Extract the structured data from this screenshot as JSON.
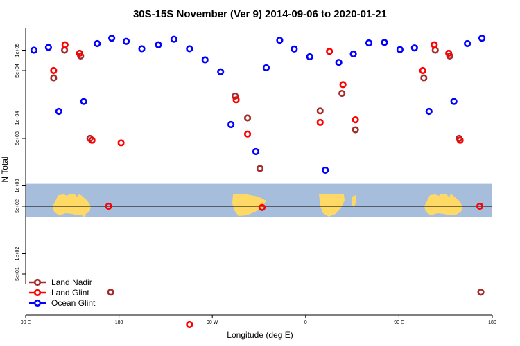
{
  "chart_data": {
    "type": "scatter",
    "title": "30S-15S November (Ver 9)   2014-09-06 to 2020-01-21",
    "xlabel": "Longitude (deg E)",
    "ylabel": "N Total",
    "xlim": [
      90,
      540
    ],
    "x_ticks": [
      {
        "value": 90,
        "label": "90 E"
      },
      {
        "value": 180,
        "label": "180"
      },
      {
        "value": 270,
        "label": "90 W"
      },
      {
        "value": 360,
        "label": "0"
      },
      {
        "value": 450,
        "label": "90 E"
      },
      {
        "value": 540,
        "label": "180"
      }
    ],
    "y_ticks": [
      {
        "value": 50,
        "label": "5e+01"
      },
      {
        "value": 100,
        "label": "1e+02"
      },
      {
        "value": 500,
        "label": "5e+02"
      },
      {
        "value": 1000,
        "label": "1e+03"
      },
      {
        "value": 5000,
        "label": "5e+03"
      },
      {
        "value": 10000,
        "label": "1e+04"
      },
      {
        "value": 50000,
        "label": "5e+04"
      },
      {
        "value": 100000,
        "label": "1e+05"
      }
    ],
    "reference_line": 500,
    "map_band": {
      "y_top": 1070,
      "y_bottom": 350,
      "land_color": "#ffd966",
      "ocean_color": "#a6bddb"
    },
    "legend": {
      "position": "bottom-left"
    },
    "series": [
      {
        "name": "Land Nadir",
        "color": "#a52a2a",
        "points": [
          {
            "x": 117.0,
            "y": 39000
          },
          {
            "x": 127.5,
            "y": 100000
          },
          {
            "x": 143.0,
            "y": 82000
          },
          {
            "x": 152.0,
            "y": 5000
          },
          {
            "x": 172.0,
            "y": 27
          },
          {
            "x": 292.0,
            "y": 21000
          },
          {
            "x": 304.0,
            "y": 10000
          },
          {
            "x": 316.0,
            "y": 1800
          },
          {
            "x": 374.0,
            "y": 12700
          },
          {
            "x": 395.0,
            "y": 23000
          },
          {
            "x": 408.0,
            "y": 6700
          },
          {
            "x": 474.0,
            "y": 39000
          },
          {
            "x": 485.0,
            "y": 100000
          },
          {
            "x": 499.0,
            "y": 82000
          },
          {
            "x": 508.0,
            "y": 5000
          },
          {
            "x": 529.0,
            "y": 27
          }
        ]
      },
      {
        "name": "Land Glint",
        "color": "#ff0000",
        "points": [
          {
            "x": 117.0,
            "y": 50000
          },
          {
            "x": 128.0,
            "y": 120000
          },
          {
            "x": 142.0,
            "y": 90000
          },
          {
            "x": 154.0,
            "y": 4700
          },
          {
            "x": 170.0,
            "y": 500
          },
          {
            "x": 182.0,
            "y": 4300
          },
          {
            "x": 248.0,
            "y": 9
          },
          {
            "x": 293.0,
            "y": 18500
          },
          {
            "x": 304.0,
            "y": 5800
          },
          {
            "x": 318.0,
            "y": 480
          },
          {
            "x": 374.0,
            "y": 8600
          },
          {
            "x": 383.0,
            "y": 96000
          },
          {
            "x": 396.0,
            "y": 31000
          },
          {
            "x": 408.0,
            "y": 9400
          },
          {
            "x": 473.0,
            "y": 50000
          },
          {
            "x": 484.0,
            "y": 120000
          },
          {
            "x": 498.0,
            "y": 90000
          },
          {
            "x": 509.0,
            "y": 4700
          },
          {
            "x": 528.0,
            "y": 500
          }
        ]
      },
      {
        "name": "Ocean Glint",
        "color": "#0000ff",
        "points": [
          {
            "x": 98.0,
            "y": 100000
          },
          {
            "x": 112.0,
            "y": 110000
          },
          {
            "x": 122.0,
            "y": 12500
          },
          {
            "x": 146.0,
            "y": 17500
          },
          {
            "x": 159.0,
            "y": 125000
          },
          {
            "x": 173.0,
            "y": 150000
          },
          {
            "x": 187.0,
            "y": 135000
          },
          {
            "x": 202.0,
            "y": 105000
          },
          {
            "x": 218.0,
            "y": 120000
          },
          {
            "x": 233.0,
            "y": 145000
          },
          {
            "x": 248.0,
            "y": 105000
          },
          {
            "x": 263.0,
            "y": 72000
          },
          {
            "x": 278.0,
            "y": 48000
          },
          {
            "x": 288.0,
            "y": 8000
          },
          {
            "x": 312.0,
            "y": 3200
          },
          {
            "x": 322.0,
            "y": 55000
          },
          {
            "x": 335.0,
            "y": 140000
          },
          {
            "x": 349.0,
            "y": 104000
          },
          {
            "x": 364.0,
            "y": 80000
          },
          {
            "x": 379.0,
            "y": 1700
          },
          {
            "x": 392.0,
            "y": 66000
          },
          {
            "x": 406.0,
            "y": 88000
          },
          {
            "x": 421.0,
            "y": 128000
          },
          {
            "x": 436.0,
            "y": 130000
          },
          {
            "x": 451.0,
            "y": 102000
          },
          {
            "x": 465.0,
            "y": 108000
          },
          {
            "x": 479.0,
            "y": 12500
          },
          {
            "x": 503.0,
            "y": 17500
          },
          {
            "x": 516.0,
            "y": 125000
          },
          {
            "x": 530.0,
            "y": 150000
          }
        ]
      }
    ]
  }
}
